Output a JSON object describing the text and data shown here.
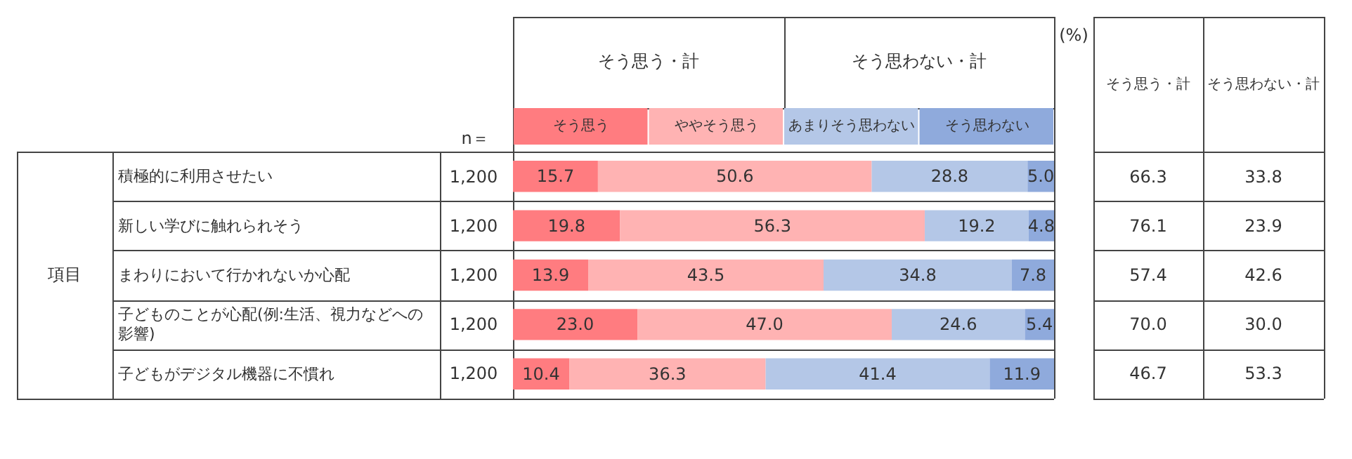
{
  "chart_data": {
    "type": "bar",
    "orientation": "horizontal",
    "stacked": true,
    "categories": [
      "積極的に利用させたい",
      "新しい学びに触れられそう",
      "まわりにおいて行かれないか心配",
      "子どものことが心配(例:生活、視力などへの影響)",
      "子どもがデジタル機器に不慣れ"
    ],
    "series": [
      {
        "name": "そう思う",
        "color": "#ff7c80",
        "values": [
          15.7,
          19.8,
          13.9,
          23.0,
          10.4
        ],
        "value_labels": [
          "15.7",
          "19.8",
          "13.9",
          "23.0",
          "10.4"
        ]
      },
      {
        "name": "ややそう思う",
        "color": "#ffb3b3",
        "values": [
          50.6,
          56.3,
          43.5,
          47.0,
          36.3
        ],
        "value_labels": [
          "50.6",
          "56.3",
          "43.5",
          "47.0",
          "36.3"
        ]
      },
      {
        "name": "あまりそう思わない",
        "color": "#b4c7e7",
        "values": [
          28.8,
          19.2,
          34.8,
          24.6,
          41.4
        ],
        "value_labels": [
          "28.8",
          "19.2",
          "34.8",
          "24.6",
          "41.4"
        ]
      },
      {
        "name": "そう思わない",
        "color": "#8faadc",
        "values": [
          5.0,
          4.8,
          7.8,
          5.4,
          11.9
        ],
        "value_labels": [
          "5.0",
          "4.8",
          "7.8",
          "5.4",
          "11.9"
        ]
      }
    ],
    "xlim": [
      0,
      100
    ],
    "tick_labels": "y",
    "grid": false,
    "legend": "top",
    "annotations": [
      "項目",
      "n＝",
      "1,200",
      "1,200",
      "1,200",
      "1,200",
      "1,200",
      "そう思う・計",
      "そう思わない・計",
      "(%)",
      "そう思う・計",
      "そう思わない・計",
      "66.3",
      "33.8",
      "76.1",
      "23.9",
      "57.4",
      "42.6",
      "70.0",
      "30.0",
      "46.7",
      "53.3"
    ]
  }
}
